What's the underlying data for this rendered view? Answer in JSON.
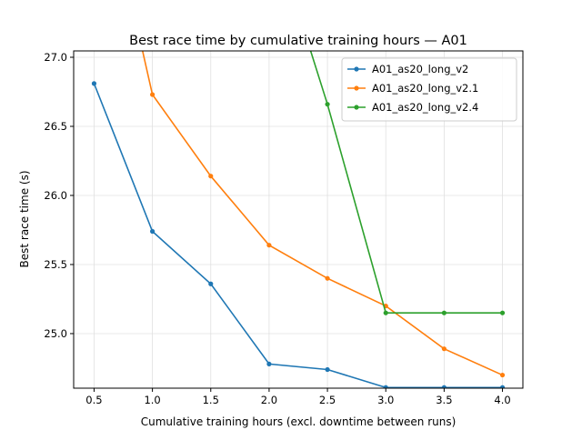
{
  "chart_data": {
    "type": "line",
    "title": "Best race time by cumulative training hours — A01",
    "xlabel": "Cumulative training hours (excl. downtime between runs)",
    "ylabel": "Best race time (s)",
    "xlim": [
      0.325,
      4.175
    ],
    "ylim": [
      24.605,
      27.046
    ],
    "xticks": [
      0.5,
      1.0,
      1.5,
      2.0,
      2.5,
      3.0,
      3.5,
      4.0
    ],
    "xtick_labels": [
      "0.5",
      "1.0",
      "1.5",
      "2.0",
      "2.5",
      "3.0",
      "3.5",
      "4.0"
    ],
    "yticks": [
      25.0,
      25.5,
      26.0,
      26.5,
      27.0
    ],
    "ytick_labels": [
      "25.0",
      "25.5",
      "26.0",
      "26.5",
      "27.0"
    ],
    "grid": true,
    "legend_position": "top-right",
    "series": [
      {
        "name": "A01_as20_long_v2",
        "color": "#1f77b4",
        "x": [
          0.5,
          1.0,
          1.5,
          2.0,
          2.5,
          3.0,
          3.5,
          4.0
        ],
        "y": [
          26.81,
          25.74,
          25.36,
          24.78,
          24.74,
          24.61,
          24.61,
          24.61
        ]
      },
      {
        "name": "A01_as20_long_v2.1",
        "color": "#ff7f0e",
        "x": [
          0.5,
          1.0,
          1.5,
          2.0,
          2.5,
          3.0,
          3.5,
          4.0
        ],
        "y": [
          28.6,
          26.73,
          26.14,
          25.64,
          25.4,
          25.2,
          24.89,
          24.7
        ]
      },
      {
        "name": "A01_as20_long_v2.4",
        "color": "#2ca02c",
        "x": [
          2.0,
          2.5,
          3.0,
          3.5,
          4.0
        ],
        "y": [
          28.0,
          26.66,
          25.15,
          25.15,
          25.15
        ]
      }
    ]
  }
}
